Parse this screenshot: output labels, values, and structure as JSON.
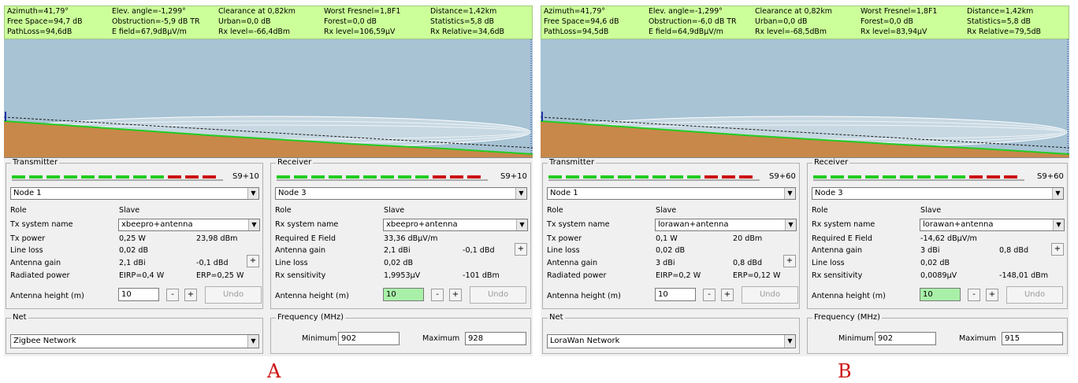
{
  "colors": {
    "stats_bg": "#ccff99",
    "sky": "#a7c3d4",
    "terrain": "#c8884a",
    "ground_line": "#22cc22",
    "meter_green": "#22cc22",
    "meter_red": "#cc1111",
    "highlight": "#a8f0a8",
    "caption": "#cc1111"
  },
  "A": {
    "stats": {
      "azimuth": "Azimuth=41,79°",
      "elev": "Elev. angle=-1,299°",
      "clearance": "Clearance at 0,82km",
      "fresnel": "Worst Fresnel=1,8F1",
      "distance": "Distance=1,42km",
      "freespace": "Free Space=94,7 dB",
      "obstruction": "Obstruction=-5,9 dB TR",
      "urban": "Urban=0,0 dB",
      "forest": "Forest=0,0 dB",
      "statistics": "Statistics=5,8 dB",
      "pathloss": "PathLoss=94,6dB",
      "efield": "E field=67,9dBµV/m",
      "rxlevel_dbm": "Rx level=-66,4dBm",
      "rxlevel_uv": "Rx level=106,59µV",
      "rxrel": "Rx Relative=34,6dB"
    },
    "tx": {
      "title": "Transmitter",
      "meter_label": "S9+10",
      "meter_level_red": 3,
      "node": "Node 1",
      "role_label": "Role",
      "role": "Slave",
      "system_label": "Tx system name",
      "system": "xbeepro+antenna",
      "power_label": "Tx power",
      "power_w": "0,25 W",
      "power_dbm": "23,98 dBm",
      "lineloss_label": "Line loss",
      "lineloss": "0,02 dB",
      "gain_label": "Antenna gain",
      "gain_dbi": "2,1 dBi",
      "gain_dbd": "-0,1 dBd",
      "radiated_label": "Radiated power",
      "eirp": "EIRP=0,4 W",
      "erp": "ERP=0,25 W",
      "height_label": "Antenna height (m)",
      "height": "10",
      "undo": "Undo"
    },
    "rx": {
      "title": "Receiver",
      "meter_label": "S9+10",
      "meter_level_red": 3,
      "node": "Node 3",
      "role_label": "Role",
      "role": "Slave",
      "system_label": "Rx system name",
      "system": "xbeepro+antenna",
      "field_label": "Required E Field",
      "field": "33,36 dBµV/m",
      "gain_label": "Antenna gain",
      "gain_dbi": "2,1 dBi",
      "gain_dbd": "-0,1 dBd",
      "lineloss_label": "Line loss",
      "lineloss": "0,02 dB",
      "sens_label": "Rx sensitivity",
      "sens_uv": "1,9953µV",
      "sens_dbm": "-101 dBm",
      "height_label": "Antenna height (m)",
      "height": "10",
      "undo": "Undo"
    },
    "net": {
      "title": "Net",
      "value": "Zigbee Network"
    },
    "freq": {
      "title": "Frequency (MHz)",
      "min_label": "Minimum",
      "min": "902",
      "max_label": "Maximum",
      "max": "928"
    },
    "caption": "A"
  },
  "B": {
    "stats": {
      "azimuth": "Azimuth=41,79°",
      "elev": "Elev. angle=-1,299°",
      "clearance": "Clearance at 0,82km",
      "fresnel": "Worst Fresnel=1,8F1",
      "distance": "Distance=1,42km",
      "freespace": "Free Space=94,6 dB",
      "obstruction": "Obstruction=-6,0 dB TR",
      "urban": "Urban=0,0 dB",
      "forest": "Forest=0,0 dB",
      "statistics": "Statistics=5,8 dB",
      "pathloss": "PathLoss=94,5dB",
      "efield": "E field=64,9dBµV/m",
      "rxlevel_dbm": "Rx level=-68,5dBm",
      "rxlevel_uv": "Rx level=83,94µV",
      "rxrel": "Rx Relative=79,5dB"
    },
    "tx": {
      "title": "Transmitter",
      "meter_label": "S9+60",
      "meter_level_red": 3,
      "node": "Node 1",
      "role_label": "Role",
      "role": "Slave",
      "system_label": "Tx system name",
      "system": "lorawan+antenna",
      "power_label": "Tx power",
      "power_w": "0,1 W",
      "power_dbm": "20 dBm",
      "lineloss_label": "Line loss",
      "lineloss": "0,02 dB",
      "gain_label": "Antenna gain",
      "gain_dbi": "3 dBi",
      "gain_dbd": "0,8 dBd",
      "radiated_label": "Radiated power",
      "eirp": "EIRP=0,2 W",
      "erp": "ERP=0,12 W",
      "height_label": "Antenna height (m)",
      "height": "10",
      "undo": "Undo"
    },
    "rx": {
      "title": "Receiver",
      "meter_label": "S9+60",
      "meter_level_red": 3,
      "node": "Node 3",
      "role_label": "Role",
      "role": "Slave",
      "system_label": "Rx system name",
      "system": "lorawan+antenna",
      "field_label": "Required E Field",
      "field": "-14,62 dBµV/m",
      "gain_label": "Antenna gain",
      "gain_dbi": "3 dBi",
      "gain_dbd": "0,8 dBd",
      "lineloss_label": "Line loss",
      "lineloss": "0,02 dB",
      "sens_label": "Rx sensitivity",
      "sens_uv": "0,0089µV",
      "sens_dbm": "-148,01 dBm",
      "height_label": "Antenna height (m)",
      "height": "10",
      "undo": "Undo"
    },
    "net": {
      "title": "Net",
      "value": "LoraWan Network"
    },
    "freq": {
      "title": "Frequency (MHz)",
      "min_label": "Minimum",
      "min": "902",
      "max_label": "Maximum",
      "max": "915"
    },
    "caption": "B"
  }
}
